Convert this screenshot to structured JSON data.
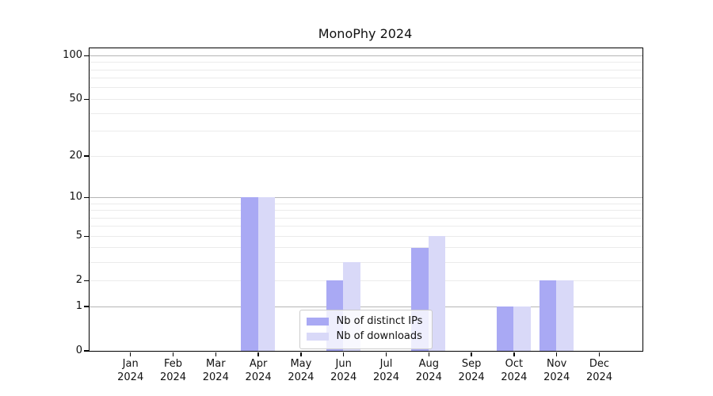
{
  "title": "MonoPhy 2024",
  "chart_data": {
    "type": "bar",
    "title": "MonoPhy 2024",
    "categories": [
      {
        "month": "Jan",
        "year": "2024"
      },
      {
        "month": "Feb",
        "year": "2024"
      },
      {
        "month": "Mar",
        "year": "2024"
      },
      {
        "month": "Apr",
        "year": "2024"
      },
      {
        "month": "May",
        "year": "2024"
      },
      {
        "month": "Jun",
        "year": "2024"
      },
      {
        "month": "Jul",
        "year": "2024"
      },
      {
        "month": "Aug",
        "year": "2024"
      },
      {
        "month": "Sep",
        "year": "2024"
      },
      {
        "month": "Oct",
        "year": "2024"
      },
      {
        "month": "Nov",
        "year": "2024"
      },
      {
        "month": "Dec",
        "year": "2024"
      }
    ],
    "series": [
      {
        "name": "Nb of distinct IPs",
        "color": "#a9a9f4",
        "values": [
          0,
          0,
          0,
          10,
          0,
          2,
          0,
          4,
          0,
          1,
          2,
          0
        ]
      },
      {
        "name": "Nb of downloads",
        "color": "#d9d9f8",
        "values": [
          0,
          0,
          0,
          10,
          0,
          3,
          0,
          5,
          0,
          1,
          2,
          0
        ]
      }
    ],
    "yscale": "log1p",
    "ylim": [
      0,
      112
    ],
    "yticks": [
      0,
      1,
      2,
      5,
      10,
      20,
      50,
      100
    ],
    "grid_major": [
      1,
      10,
      100
    ],
    "grid_minor": [
      2,
      3,
      4,
      5,
      6,
      7,
      8,
      9,
      20,
      30,
      40,
      50,
      60,
      70,
      80,
      90
    ],
    "legend_position": "lower center",
    "grid": true,
    "xlabel": "",
    "ylabel": ""
  },
  "colors": {
    "distinct_ips": "#a9a9f4",
    "downloads": "#d9d9f8",
    "grid_major": "#b5b5b5",
    "grid_minor": "#ebebeb",
    "axis": "#000000",
    "background": "#ffffff"
  }
}
